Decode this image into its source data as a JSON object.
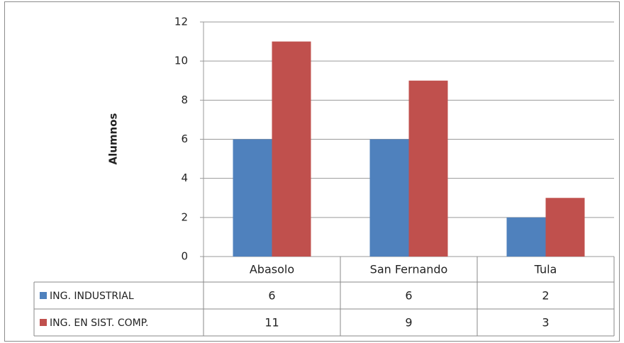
{
  "chart_data": {
    "type": "bar",
    "y_label": "Alumnos",
    "categories": [
      "Abasolo",
      "San Fernando",
      "Tula"
    ],
    "series": [
      {
        "name": "ING. INDUSTRIAL",
        "color": "#4f81bd",
        "values": [
          6,
          6,
          2
        ]
      },
      {
        "name": "ING. EN SIST. COMP.",
        "color": "#c0504d",
        "values": [
          11,
          9,
          3
        ]
      }
    ],
    "ylim": [
      0,
      12
    ],
    "yticks": [
      0,
      2,
      4,
      6,
      8,
      10,
      12
    ],
    "grid": true,
    "data_table": true
  }
}
